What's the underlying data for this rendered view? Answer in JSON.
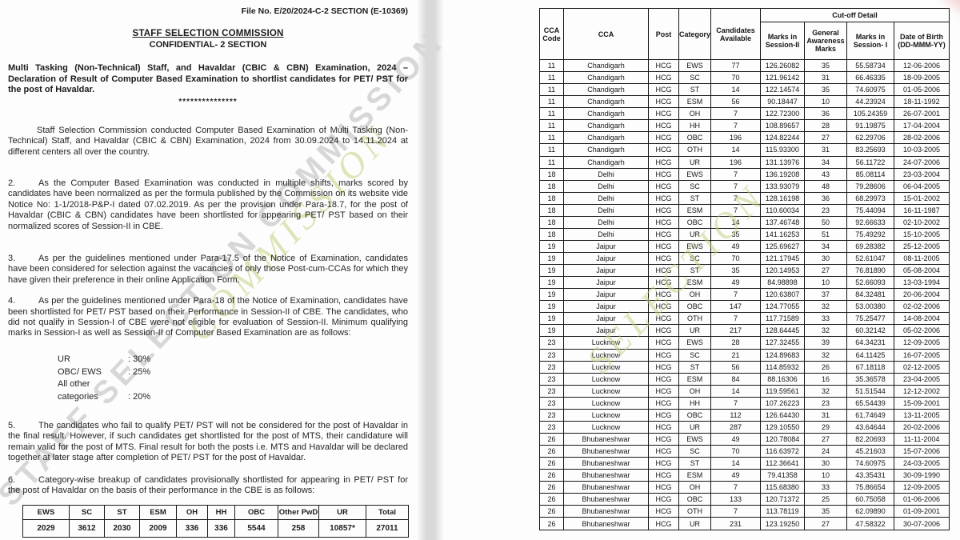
{
  "colors": {
    "page_background": "#fdfdfd",
    "ink": "#1b1b1b",
    "table_border": "#161616",
    "fold_shadow": "#d9d9d9",
    "watermark_gray": "#8a8a8a",
    "watermark_green": "#c6cd80",
    "stamp_pink": "#e99e9e"
  },
  "left_page": {
    "file_no": "File No. E/20/2024-C-2 SECTION (E-10369)",
    "title": "STAFF SELECTION COMMISSION",
    "subtitle": "CONFIDENTIAL- 2 SECTION",
    "heading": "Multi Tasking (Non-Technical) Staff, and Havaldar (CBIC & CBN) Examination, 2024 – Declaration of Result of Computer Based Examination to shortlist candidates for PET/ PST for the post of Havaldar.",
    "separator": "***************",
    "paragraphs": [
      {
        "num": "",
        "text": "Staff Selection Commission conducted Computer Based Examination of Multi Tasking (Non-Technical) Staff, and Havaldar (CBIC & CBN) Examination, 2024 from 30.09.2024 to 14.11.2024 at different centers all over the country."
      },
      {
        "num": "2.",
        "text": "As the Computer Based Examination was conducted in multiple shifts, marks scored by candidates have been normalized as per the formula published by the Commission on its website vide Notice No: 1-1/2018-P&P-I dated 07.02.2019. As per the provision under Para-18.7, for the post of Havaldar (CBIC & CBN) candidates have been shortlisted for appearing PET/ PST based on their normalized scores of Session-II in CBE."
      },
      {
        "num": "3.",
        "text": "As per the guidelines mentioned under Para-17.5 of the Notice of Examination, candidates have been considered for selection against the vacancies of only those Post-cum-CCAs for which they have given their preference in their online Application Form."
      },
      {
        "num": "4.",
        "text": "As per the guidelines mentioned under Para-18 of the Notice of Examination, candidates have been shortlisted for PET/ PST based on their Performance in Session-II of CBE. The candidates, who did not qualify in Session-I of CBE were not eligible for evaluation of Session-II. Minimum qualifying marks in Session-I as well as Session-II of Computer Based Examination are as follows:"
      },
      {
        "num": "5.",
        "text": "The candidates who fail to qualify PET/ PST will not be considered for the post of Havaldar in the final result. However, if such candidates get shortlisted for the post of MTS, their candidature will remain valid for the post of MTS. Final result for both the posts i.e. MTS and Havaldar will be declared together at later stage after completion of PET/ PST for the post of Havaldar."
      },
      {
        "num": "6.",
        "text": "Category-wise breakup of candidates provisionally shortlisted for appearing in PET/ PST for the post of Havaldar on the basis of their performance in the CBE is as follows:"
      }
    ],
    "qualifying_marks": [
      {
        "label": "UR",
        "value": ": 30%"
      },
      {
        "label": "OBC/ EWS",
        "value": ": 25%"
      },
      {
        "label": "All other categories",
        "value": ": 20%"
      }
    ],
    "summary_table": {
      "headers": [
        "EWS",
        "SC",
        "ST",
        "ESM",
        "OH",
        "HH",
        "OBC",
        "Other PwD",
        "UR",
        "Total"
      ],
      "values": [
        "2029",
        "3612",
        "2030",
        "2009",
        "336",
        "336",
        "5544",
        "258",
        "10857*",
        "27011"
      ]
    }
  },
  "watermarks": {
    "gray_text": "STAFF SELECTION COMMISSION",
    "green_text_left": "COMMISSION",
    "green_text_right": "SELECTION"
  },
  "cutoff_table": {
    "header": {
      "cca_code": "CCA Code",
      "cca": "CCA",
      "post": "Post",
      "category": "Category",
      "candidates": "Candidates Available",
      "cutoff_detail": "Cut-off Detail",
      "marks_s2": "Marks in Session-II",
      "ga_marks": "General Awareness Marks",
      "marks_s1": "Marks in Session- I",
      "dob": "Date of Birth (DD-MMM-YY)"
    },
    "rows": [
      [
        "11",
        "Chandigarh",
        "HCG",
        "EWS",
        "77",
        "126.26082",
        "35",
        "55.58734",
        "12-06-2006"
      ],
      [
        "11",
        "Chandigarh",
        "HCG",
        "SC",
        "70",
        "121.96142",
        "31",
        "66.46335",
        "18-09-2005"
      ],
      [
        "11",
        "Chandigarh",
        "HCG",
        "ST",
        "14",
        "122.14574",
        "35",
        "74.60975",
        "01-05-2006"
      ],
      [
        "11",
        "Chandigarh",
        "HCG",
        "ESM",
        "56",
        "90.18447",
        "10",
        "44.23924",
        "18-11-1992"
      ],
      [
        "11",
        "Chandigarh",
        "HCG",
        "OH",
        "7",
        "122.72300",
        "36",
        "105.24359",
        "26-07-2001"
      ],
      [
        "11",
        "Chandigarh",
        "HCG",
        "HH",
        "7",
        "108.89657",
        "28",
        "91.19875",
        "17-04-2004"
      ],
      [
        "11",
        "Chandigarh",
        "HCG",
        "OBC",
        "196",
        "124.82244",
        "27",
        "62.29706",
        "28-02-2006"
      ],
      [
        "11",
        "Chandigarh",
        "HCG",
        "OTH",
        "14",
        "115.93300",
        "31",
        "83.25693",
        "10-03-2005"
      ],
      [
        "11",
        "Chandigarh",
        "HCG",
        "UR",
        "196",
        "131.13976",
        "34",
        "56.11722",
        "24-07-2006"
      ],
      [
        "18",
        "Delhi",
        "HCG",
        "EWS",
        "7",
        "136.19208",
        "43",
        "85.08114",
        "23-03-2004"
      ],
      [
        "18",
        "Delhi",
        "HCG",
        "SC",
        "7",
        "133.93079",
        "48",
        "79.28606",
        "06-04-2005"
      ],
      [
        "18",
        "Delhi",
        "HCG",
        "ST",
        "7",
        "128.16198",
        "36",
        "68.29973",
        "15-01-2002"
      ],
      [
        "18",
        "Delhi",
        "HCG",
        "ESM",
        "7",
        "110.60034",
        "23",
        "75.44094",
        "16-11-1987"
      ],
      [
        "18",
        "Delhi",
        "HCG",
        "OBC",
        "14",
        "137.46748",
        "50",
        "92.66633",
        "02-10-2002"
      ],
      [
        "18",
        "Delhi",
        "HCG",
        "UR",
        "35",
        "141.16253",
        "51",
        "75.49292",
        "15-10-2005"
      ],
      [
        "19",
        "Jaipur",
        "HCG",
        "EWS",
        "49",
        "125.69627",
        "34",
        "69.28382",
        "25-12-2005"
      ],
      [
        "19",
        "Jaipur",
        "HCG",
        "SC",
        "70",
        "121.17945",
        "30",
        "52.61047",
        "08-11-2005"
      ],
      [
        "19",
        "Jaipur",
        "HCG",
        "ST",
        "35",
        "120.14953",
        "27",
        "76.81890",
        "05-08-2004"
      ],
      [
        "19",
        "Jaipur",
        "HCG",
        "ESM",
        "49",
        "84.98898",
        "10",
        "52.66093",
        "13-03-1994"
      ],
      [
        "19",
        "Jaipur",
        "HCG",
        "OH",
        "7",
        "120.63807",
        "37",
        "84.32481",
        "20-06-2004"
      ],
      [
        "19",
        "Jaipur",
        "HCG",
        "OBC",
        "147",
        "124.77055",
        "32",
        "53.00380",
        "02-02-2006"
      ],
      [
        "19",
        "Jaipur",
        "HCG",
        "OTH",
        "7",
        "117.71589",
        "33",
        "75.25477",
        "14-08-2004"
      ],
      [
        "19",
        "Jaipur",
        "HCG",
        "UR",
        "217",
        "128.64445",
        "32",
        "60.32142",
        "05-02-2006"
      ],
      [
        "23",
        "Lucknow",
        "HCG",
        "EWS",
        "28",
        "127.32455",
        "39",
        "64.34231",
        "12-09-2005"
      ],
      [
        "23",
        "Lucknow",
        "HCG",
        "SC",
        "21",
        "124.89683",
        "32",
        "64.11425",
        "16-07-2005"
      ],
      [
        "23",
        "Lucknow",
        "HCG",
        "ST",
        "56",
        "114.85932",
        "26",
        "67.18118",
        "02-12-2005"
      ],
      [
        "23",
        "Lucknow",
        "HCG",
        "ESM",
        "84",
        "88.16306",
        "16",
        "35.36578",
        "23-04-2005"
      ],
      [
        "23",
        "Lucknow",
        "HCG",
        "OH",
        "14",
        "119.59561",
        "32",
        "51.51544",
        "12-12-2002"
      ],
      [
        "23",
        "Lucknow",
        "HCG",
        "HH",
        "7",
        "107.26223",
        "23",
        "65.54439",
        "15-09-2001"
      ],
      [
        "23",
        "Lucknow",
        "HCG",
        "OBC",
        "112",
        "126.64430",
        "31",
        "61.74649",
        "13-11-2005"
      ],
      [
        "23",
        "Lucknow",
        "HCG",
        "UR",
        "287",
        "129.10550",
        "29",
        "43.64644",
        "20-02-2006"
      ],
      [
        "26",
        "Bhubaneshwar",
        "HCG",
        "EWS",
        "49",
        "120.78084",
        "27",
        "82.20693",
        "11-11-2004"
      ],
      [
        "26",
        "Bhubaneshwar",
        "HCG",
        "SC",
        "70",
        "116.63972",
        "24",
        "45.21603",
        "15-07-2006"
      ],
      [
        "26",
        "Bhubaneshwar",
        "HCG",
        "ST",
        "14",
        "112.36641",
        "30",
        "74.60975",
        "24-03-2005"
      ],
      [
        "26",
        "Bhubaneshwar",
        "HCG",
        "ESM",
        "49",
        "79.41358",
        "10",
        "43.35431",
        "30-09-1990"
      ],
      [
        "26",
        "Bhubaneshwar",
        "HCG",
        "OH",
        "7",
        "115.68380",
        "33",
        "75.86654",
        "12-09-2005"
      ],
      [
        "26",
        "Bhubaneshwar",
        "HCG",
        "OBC",
        "133",
        "120.71372",
        "25",
        "60.75058",
        "01-06-2006"
      ],
      [
        "26",
        "Bhubaneshwar",
        "HCG",
        "OTH",
        "7",
        "113.78119",
        "35",
        "62.09890",
        "01-09-2001"
      ],
      [
        "26",
        "Bhubaneshwar",
        "HCG",
        "UR",
        "231",
        "123.19250",
        "27",
        "47.58322",
        "30-07-2006"
      ]
    ]
  }
}
